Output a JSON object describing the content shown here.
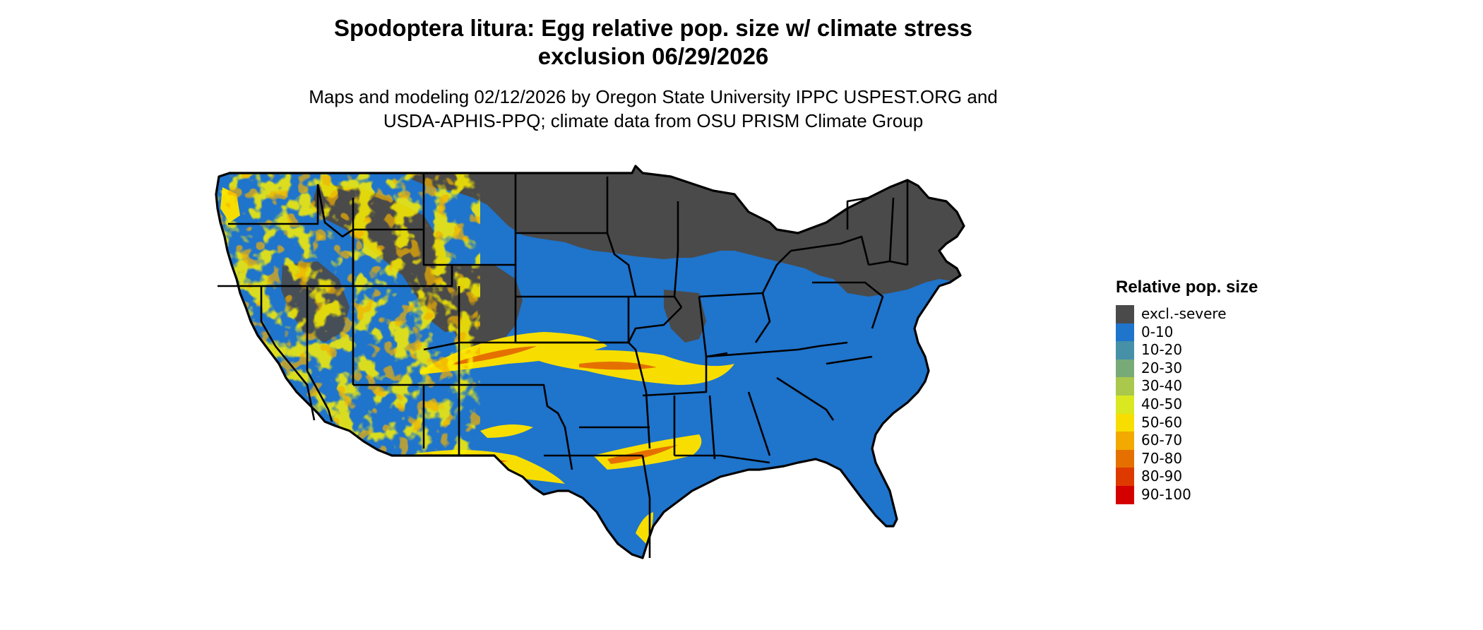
{
  "title_line1": "Spodoptera litura: Egg relative pop. size w/ climate stress",
  "title_line2": "exclusion 06/29/2026",
  "subtitle_line1": "Maps and modeling 02/12/2026 by Oregon State University IPPC USPEST.ORG and",
  "subtitle_line2": "USDA-APHIS-PPQ; climate data from OSU PRISM Climate Group",
  "legend": {
    "title": "Relative pop. size",
    "items": [
      {
        "label": "excl.-severe",
        "color": "#4a4a4a"
      },
      {
        "label": "0-10",
        "color": "#1f74cc"
      },
      {
        "label": "10-20",
        "color": "#4690a8"
      },
      {
        "label": "20-30",
        "color": "#78aa78"
      },
      {
        "label": "30-40",
        "color": "#a9c84c"
      },
      {
        "label": "40-50",
        "color": "#d9e820"
      },
      {
        "label": "50-60",
        "color": "#f7de00"
      },
      {
        "label": "60-70",
        "color": "#f2a900"
      },
      {
        "label": "70-80",
        "color": "#e57000"
      },
      {
        "label": "80-90",
        "color": "#de3a00"
      },
      {
        "label": "90-100",
        "color": "#d40000"
      }
    ]
  },
  "map_colors": {
    "excluded": "#4a4a4a",
    "low": "#1f74cc",
    "mid": "#f7de00",
    "high": "#e57000",
    "border": "#000000"
  }
}
